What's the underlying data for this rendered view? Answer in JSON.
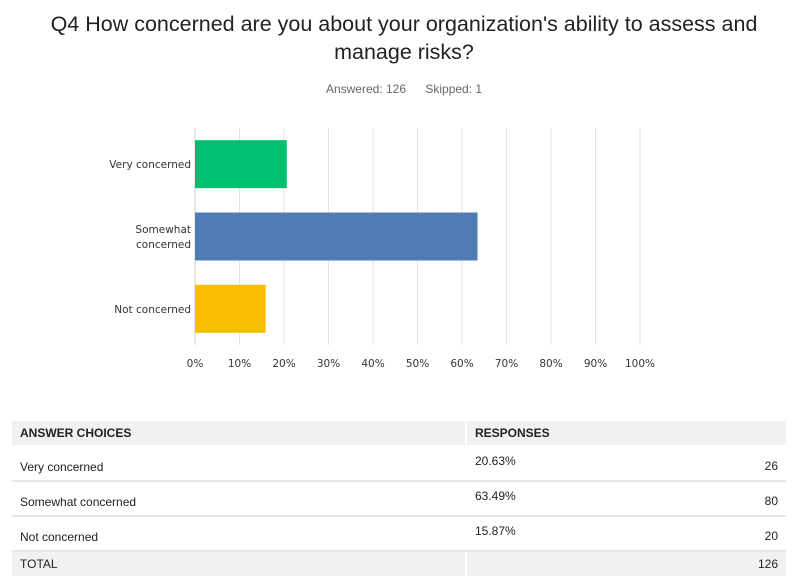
{
  "header": {
    "title_line1": "Q4 How concerned are you about your organization's ability to assess and",
    "title_line2": "manage risks?",
    "answered": "Answered: 126",
    "skipped": "Skipped: 1"
  },
  "chart_data": {
    "type": "bar",
    "orientation": "horizontal",
    "categories": [
      "Very concerned",
      "Somewhat concerned",
      "Not concerned"
    ],
    "category_lines": [
      [
        "Very concerned"
      ],
      [
        "Somewhat",
        "concerned"
      ],
      [
        "Not concerned"
      ]
    ],
    "values": [
      20.63,
      63.49,
      15.87
    ],
    "colors": [
      "#00bf6f",
      "#507cb6",
      "#f9be00"
    ],
    "xlim": [
      0,
      100
    ],
    "xticks": [
      "0%",
      "10%",
      "20%",
      "30%",
      "40%",
      "50%",
      "60%",
      "70%",
      "80%",
      "90%",
      "100%"
    ],
    "grid": true,
    "title": "",
    "xlabel": "",
    "ylabel": ""
  },
  "table": {
    "headers": [
      "ANSWER CHOICES",
      "RESPONSES"
    ],
    "rows": [
      {
        "choice": "Very concerned",
        "percent": "20.63%",
        "count": "26"
      },
      {
        "choice": "Somewhat concerned",
        "percent": "63.49%",
        "count": "80"
      },
      {
        "choice": "Not concerned",
        "percent": "15.87%",
        "count": "20"
      }
    ],
    "total_label": "TOTAL",
    "total_count": "126"
  }
}
